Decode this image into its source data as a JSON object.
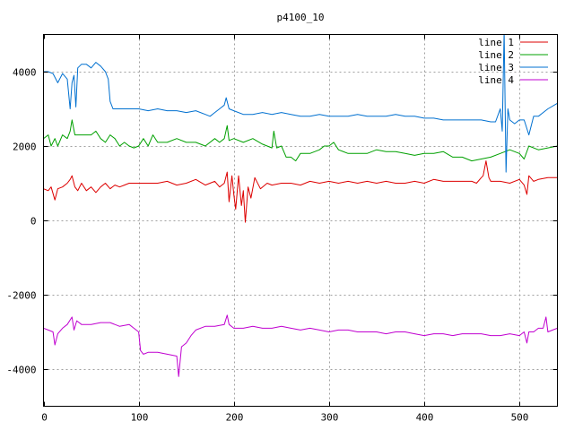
{
  "chart_data": {
    "type": "line",
    "title": "p4100_10",
    "xlabel": "",
    "ylabel": "",
    "xlim": [
      0,
      540
    ],
    "ylim": [
      -5000,
      5000
    ],
    "xticks": [
      0,
      100,
      200,
      300,
      400,
      500
    ],
    "yticks": [
      4000,
      2000,
      0,
      -2000,
      -4000
    ],
    "x_tick_labels": [
      "0",
      "100",
      "200",
      "300",
      "400",
      "500"
    ],
    "y_tick_labels": [
      "4000",
      "2000",
      "0",
      "-2000",
      "-4000"
    ],
    "grid": true,
    "legend_position": "top-right",
    "series": [
      {
        "name": "line 1",
        "color": "#dd0000",
        "points": [
          [
            0,
            850
          ],
          [
            5,
            800
          ],
          [
            8,
            900
          ],
          [
            12,
            550
          ],
          [
            15,
            850
          ],
          [
            20,
            900
          ],
          [
            25,
            1000
          ],
          [
            28,
            1100
          ],
          [
            30,
            1200
          ],
          [
            33,
            900
          ],
          [
            36,
            800
          ],
          [
            40,
            1000
          ],
          [
            45,
            800
          ],
          [
            50,
            900
          ],
          [
            55,
            750
          ],
          [
            60,
            900
          ],
          [
            65,
            1000
          ],
          [
            70,
            850
          ],
          [
            75,
            950
          ],
          [
            80,
            900
          ],
          [
            85,
            950
          ],
          [
            90,
            1000
          ],
          [
            100,
            1000
          ],
          [
            110,
            1000
          ],
          [
            120,
            1000
          ],
          [
            130,
            1050
          ],
          [
            140,
            950
          ],
          [
            150,
            1000
          ],
          [
            160,
            1100
          ],
          [
            170,
            950
          ],
          [
            180,
            1050
          ],
          [
            185,
            900
          ],
          [
            190,
            1000
          ],
          [
            193,
            1300
          ],
          [
            195,
            500
          ],
          [
            198,
            1200
          ],
          [
            200,
            700
          ],
          [
            202,
            300
          ],
          [
            205,
            1200
          ],
          [
            208,
            400
          ],
          [
            210,
            800
          ],
          [
            212,
            -50
          ],
          [
            215,
            900
          ],
          [
            218,
            600
          ],
          [
            222,
            1150
          ],
          [
            228,
            850
          ],
          [
            235,
            1000
          ],
          [
            240,
            950
          ],
          [
            250,
            1000
          ],
          [
            260,
            1000
          ],
          [
            270,
            950
          ],
          [
            280,
            1050
          ],
          [
            290,
            1000
          ],
          [
            300,
            1050
          ],
          [
            310,
            1000
          ],
          [
            320,
            1050
          ],
          [
            330,
            1000
          ],
          [
            340,
            1050
          ],
          [
            350,
            1000
          ],
          [
            360,
            1050
          ],
          [
            370,
            1000
          ],
          [
            380,
            1000
          ],
          [
            390,
            1050
          ],
          [
            400,
            1000
          ],
          [
            410,
            1100
          ],
          [
            420,
            1050
          ],
          [
            430,
            1050
          ],
          [
            440,
            1050
          ],
          [
            450,
            1050
          ],
          [
            455,
            1000
          ],
          [
            460,
            1150
          ],
          [
            462,
            1200
          ],
          [
            465,
            1600
          ],
          [
            468,
            1150
          ],
          [
            470,
            1050
          ],
          [
            480,
            1050
          ],
          [
            490,
            1000
          ],
          [
            500,
            1100
          ],
          [
            505,
            950
          ],
          [
            508,
            700
          ],
          [
            510,
            1200
          ],
          [
            515,
            1050
          ],
          [
            520,
            1100
          ],
          [
            530,
            1150
          ],
          [
            540,
            1150
          ]
        ]
      },
      {
        "name": "line 2",
        "color": "#00a000",
        "points": [
          [
            0,
            2200
          ],
          [
            5,
            2300
          ],
          [
            8,
            2000
          ],
          [
            12,
            2200
          ],
          [
            15,
            2000
          ],
          [
            20,
            2300
          ],
          [
            25,
            2200
          ],
          [
            28,
            2400
          ],
          [
            30,
            2700
          ],
          [
            33,
            2300
          ],
          [
            40,
            2300
          ],
          [
            50,
            2300
          ],
          [
            55,
            2400
          ],
          [
            60,
            2200
          ],
          [
            65,
            2100
          ],
          [
            70,
            2300
          ],
          [
            75,
            2200
          ],
          [
            80,
            2000
          ],
          [
            85,
            2100
          ],
          [
            90,
            2000
          ],
          [
            95,
            1950
          ],
          [
            100,
            2000
          ],
          [
            105,
            2200
          ],
          [
            110,
            2000
          ],
          [
            115,
            2300
          ],
          [
            120,
            2100
          ],
          [
            130,
            2100
          ],
          [
            140,
            2200
          ],
          [
            150,
            2100
          ],
          [
            160,
            2100
          ],
          [
            170,
            2000
          ],
          [
            180,
            2200
          ],
          [
            185,
            2100
          ],
          [
            190,
            2200
          ],
          [
            193,
            2550
          ],
          [
            195,
            2150
          ],
          [
            200,
            2200
          ],
          [
            210,
            2100
          ],
          [
            220,
            2200
          ],
          [
            230,
            2050
          ],
          [
            240,
            1950
          ],
          [
            242,
            2400
          ],
          [
            245,
            1950
          ],
          [
            250,
            2000
          ],
          [
            255,
            1700
          ],
          [
            260,
            1700
          ],
          [
            265,
            1600
          ],
          [
            270,
            1800
          ],
          [
            280,
            1800
          ],
          [
            290,
            1900
          ],
          [
            295,
            2000
          ],
          [
            300,
            2000
          ],
          [
            305,
            2100
          ],
          [
            310,
            1900
          ],
          [
            320,
            1800
          ],
          [
            330,
            1800
          ],
          [
            340,
            1800
          ],
          [
            350,
            1900
          ],
          [
            360,
            1850
          ],
          [
            370,
            1850
          ],
          [
            380,
            1800
          ],
          [
            390,
            1750
          ],
          [
            400,
            1800
          ],
          [
            410,
            1800
          ],
          [
            420,
            1850
          ],
          [
            430,
            1700
          ],
          [
            440,
            1700
          ],
          [
            450,
            1600
          ],
          [
            460,
            1650
          ],
          [
            470,
            1700
          ],
          [
            480,
            1800
          ],
          [
            490,
            1900
          ],
          [
            500,
            1800
          ],
          [
            505,
            1650
          ],
          [
            510,
            2000
          ],
          [
            520,
            1900
          ],
          [
            530,
            1950
          ],
          [
            540,
            2000
          ]
        ]
      },
      {
        "name": "line 3",
        "color": "#0070d0",
        "points": [
          [
            0,
            4000
          ],
          [
            5,
            4000
          ],
          [
            10,
            3950
          ],
          [
            15,
            3700
          ],
          [
            20,
            3950
          ],
          [
            25,
            3800
          ],
          [
            28,
            3000
          ],
          [
            30,
            3700
          ],
          [
            32,
            3900
          ],
          [
            34,
            3050
          ],
          [
            36,
            4100
          ],
          [
            40,
            4200
          ],
          [
            45,
            4200
          ],
          [
            50,
            4100
          ],
          [
            55,
            4250
          ],
          [
            60,
            4150
          ],
          [
            65,
            4000
          ],
          [
            68,
            3800
          ],
          [
            70,
            3200
          ],
          [
            73,
            3000
          ],
          [
            80,
            3000
          ],
          [
            90,
            3000
          ],
          [
            100,
            3000
          ],
          [
            110,
            2950
          ],
          [
            120,
            3000
          ],
          [
            130,
            2950
          ],
          [
            140,
            2950
          ],
          [
            150,
            2900
          ],
          [
            160,
            2950
          ],
          [
            170,
            2850
          ],
          [
            175,
            2800
          ],
          [
            180,
            2900
          ],
          [
            185,
            3000
          ],
          [
            190,
            3100
          ],
          [
            192,
            3300
          ],
          [
            195,
            3000
          ],
          [
            200,
            2950
          ],
          [
            210,
            2850
          ],
          [
            220,
            2850
          ],
          [
            230,
            2900
          ],
          [
            240,
            2850
          ],
          [
            250,
            2900
          ],
          [
            260,
            2850
          ],
          [
            270,
            2800
          ],
          [
            280,
            2800
          ],
          [
            290,
            2850
          ],
          [
            300,
            2800
          ],
          [
            310,
            2800
          ],
          [
            320,
            2800
          ],
          [
            330,
            2850
          ],
          [
            340,
            2800
          ],
          [
            350,
            2800
          ],
          [
            360,
            2800
          ],
          [
            370,
            2850
          ],
          [
            380,
            2800
          ],
          [
            390,
            2800
          ],
          [
            400,
            2750
          ],
          [
            410,
            2750
          ],
          [
            420,
            2700
          ],
          [
            430,
            2700
          ],
          [
            440,
            2700
          ],
          [
            450,
            2700
          ],
          [
            460,
            2700
          ],
          [
            470,
            2650
          ],
          [
            475,
            2650
          ],
          [
            480,
            3000
          ],
          [
            482,
            2400
          ],
          [
            484,
            5100
          ],
          [
            486,
            1300
          ],
          [
            488,
            3000
          ],
          [
            490,
            2700
          ],
          [
            495,
            2600
          ],
          [
            500,
            2700
          ],
          [
            505,
            2700
          ],
          [
            510,
            2300
          ],
          [
            515,
            2800
          ],
          [
            520,
            2800
          ],
          [
            530,
            3000
          ],
          [
            540,
            3150
          ]
        ]
      },
      {
        "name": "line 4",
        "color": "#c000d0",
        "points": [
          [
            0,
            -2900
          ],
          [
            5,
            -2950
          ],
          [
            10,
            -3000
          ],
          [
            12,
            -3350
          ],
          [
            15,
            -3050
          ],
          [
            20,
            -2900
          ],
          [
            25,
            -2800
          ],
          [
            30,
            -2600
          ],
          [
            32,
            -2950
          ],
          [
            35,
            -2700
          ],
          [
            40,
            -2800
          ],
          [
            50,
            -2800
          ],
          [
            60,
            -2750
          ],
          [
            70,
            -2750
          ],
          [
            80,
            -2850
          ],
          [
            90,
            -2800
          ],
          [
            95,
            -2900
          ],
          [
            100,
            -3000
          ],
          [
            102,
            -3500
          ],
          [
            105,
            -3600
          ],
          [
            110,
            -3550
          ],
          [
            120,
            -3550
          ],
          [
            130,
            -3600
          ],
          [
            140,
            -3650
          ],
          [
            142,
            -4200
          ],
          [
            145,
            -3400
          ],
          [
            150,
            -3300
          ],
          [
            155,
            -3100
          ],
          [
            160,
            -2950
          ],
          [
            170,
            -2850
          ],
          [
            180,
            -2850
          ],
          [
            190,
            -2800
          ],
          [
            193,
            -2550
          ],
          [
            195,
            -2800
          ],
          [
            200,
            -2900
          ],
          [
            210,
            -2900
          ],
          [
            220,
            -2850
          ],
          [
            230,
            -2900
          ],
          [
            240,
            -2900
          ],
          [
            250,
            -2850
          ],
          [
            260,
            -2900
          ],
          [
            270,
            -2950
          ],
          [
            280,
            -2900
          ],
          [
            290,
            -2950
          ],
          [
            300,
            -3000
          ],
          [
            310,
            -2950
          ],
          [
            320,
            -2950
          ],
          [
            330,
            -3000
          ],
          [
            340,
            -3000
          ],
          [
            350,
            -3000
          ],
          [
            360,
            -3050
          ],
          [
            370,
            -3000
          ],
          [
            380,
            -3000
          ],
          [
            390,
            -3050
          ],
          [
            400,
            -3100
          ],
          [
            410,
            -3050
          ],
          [
            420,
            -3050
          ],
          [
            430,
            -3100
          ],
          [
            440,
            -3050
          ],
          [
            450,
            -3050
          ],
          [
            460,
            -3050
          ],
          [
            470,
            -3100
          ],
          [
            480,
            -3100
          ],
          [
            490,
            -3050
          ],
          [
            500,
            -3100
          ],
          [
            505,
            -3000
          ],
          [
            508,
            -3300
          ],
          [
            510,
            -3000
          ],
          [
            515,
            -3000
          ],
          [
            520,
            -2900
          ],
          [
            525,
            -2900
          ],
          [
            528,
            -2600
          ],
          [
            530,
            -3000
          ],
          [
            535,
            -2950
          ],
          [
            540,
            -2900
          ]
        ]
      }
    ]
  }
}
